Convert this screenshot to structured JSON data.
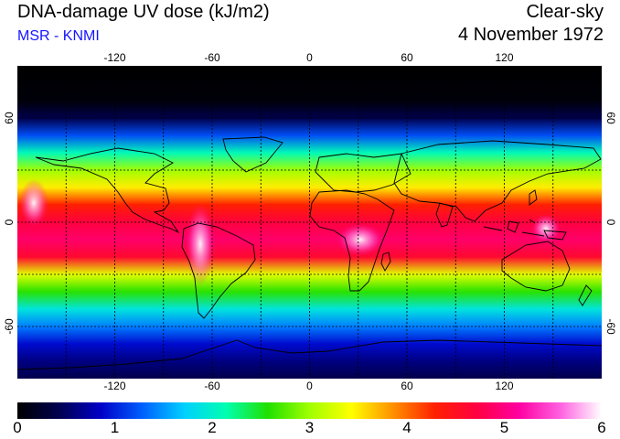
{
  "header": {
    "title": "DNA-damage UV dose (kJ/m2)",
    "credit": "MSR - KNMI",
    "mode": "Clear-sky",
    "date": "4 November 1972"
  },
  "map": {
    "lon_ticks": [
      "-120",
      "-60",
      "0",
      "60",
      "120"
    ],
    "lon_tick_values": [
      -120,
      -60,
      0,
      60,
      120
    ],
    "lat_ticks": [
      "60",
      "0",
      "-60"
    ],
    "lat_tick_values": [
      60,
      0,
      -60
    ],
    "graticule_lons": [
      -150,
      -120,
      -90,
      -60,
      -30,
      0,
      30,
      60,
      90,
      120,
      150
    ],
    "graticule_lats": [
      60,
      30,
      0,
      -30,
      -60
    ],
    "lon_range": [
      -180,
      180
    ],
    "lat_range": [
      -90,
      90
    ],
    "projection": "equirectangular",
    "grid": "dotted",
    "field_profile": {
      "lat": [
        90,
        70,
        60,
        50,
        40,
        30,
        20,
        10,
        0,
        -10,
        -20,
        -30,
        -40,
        -50,
        -60,
        -70,
        -80,
        -90
      ],
      "dose": [
        0.0,
        0.05,
        0.4,
        1.2,
        2.1,
        3.0,
        3.5,
        4.3,
        4.7,
        4.9,
        4.6,
        3.3,
        2.6,
        1.9,
        1.4,
        0.9,
        0.6,
        0.4
      ]
    }
  },
  "colorbar": {
    "labels": [
      "0",
      "1",
      "2",
      "3",
      "4",
      "5",
      "6"
    ],
    "min": 0,
    "max": 6,
    "colors": [
      "#000000",
      "#000050",
      "#0000c8",
      "#0060ff",
      "#00d0ff",
      "#00ffb0",
      "#20e000",
      "#a0ff00",
      "#ffff00",
      "#ff9000",
      "#ff2000",
      "#ff0040",
      "#ff00a0",
      "#ff60e0",
      "#ffffff"
    ]
  },
  "colors": {
    "credit": "#1414ff",
    "coast": "#000000",
    "grid": "#000000"
  }
}
